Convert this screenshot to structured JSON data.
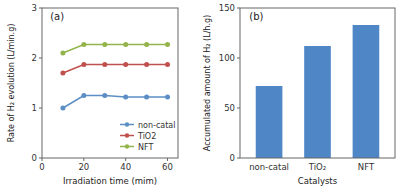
{
  "chart_data": [
    {
      "type": "line",
      "title": "(a)",
      "x": [
        10,
        20,
        30,
        40,
        50,
        60
      ],
      "series": [
        {
          "name": "non-catal",
          "color": "#5b8ec5",
          "marker": "circle",
          "values": [
            1.0,
            1.25,
            1.25,
            1.22,
            1.22,
            1.22
          ]
        },
        {
          "name": "TiO2",
          "color": "#c0504d",
          "marker": "circle",
          "values": [
            1.7,
            1.87,
            1.87,
            1.87,
            1.87,
            1.87
          ]
        },
        {
          "name": "NFT",
          "color": "#92b44a",
          "marker": "circle",
          "values": [
            2.1,
            2.27,
            2.27,
            2.27,
            2.27,
            2.27
          ]
        }
      ],
      "x_label": "Irradiation time (mim)",
      "y_label": "Rate of H₂ evolution (L/min.g)",
      "xlim": [
        0,
        65
      ],
      "ylim": [
        0,
        3
      ],
      "xticks": [
        0,
        20,
        40,
        60
      ],
      "yticks": [
        0,
        1,
        2,
        3
      ],
      "legend": "lower right"
    },
    {
      "type": "bar",
      "title": "(b)",
      "categories": [
        "non-catal",
        "TiO₂",
        "NFT"
      ],
      "values": [
        72,
        112,
        133
      ],
      "color": "#4f86c6",
      "x_label": "Catalysts",
      "y_label": "Accumulated amount of H₂ (L/h.g)",
      "ylim": [
        0,
        150
      ],
      "yticks": [
        0,
        50,
        100,
        150
      ]
    }
  ]
}
